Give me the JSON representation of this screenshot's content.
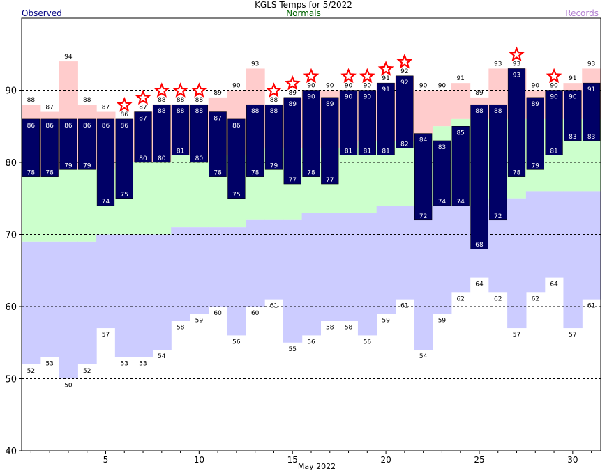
{
  "title": "KGLS Temps for 5/2022",
  "legend": {
    "observed": "Observed",
    "normals": "Normals",
    "records": "Records"
  },
  "colors": {
    "observed": "#000066",
    "normals": "#ccffcc",
    "records_high": "#ffcccc",
    "records_low": "#ccccff",
    "star": "#ff0000",
    "grid": "#000000"
  },
  "chart_data": {
    "type": "bar",
    "title": "KGLS Temps for 5/2022",
    "xlabel": "May 2022",
    "ylabel": "",
    "ylim": [
      40,
      100
    ],
    "yticks": [
      40,
      50,
      60,
      70,
      80,
      90
    ],
    "xticks": [
      5,
      10,
      15,
      20,
      25,
      30
    ],
    "grid_dashed_at": [
      50,
      60,
      70,
      80,
      90
    ],
    "days": [
      1,
      2,
      3,
      4,
      5,
      6,
      7,
      8,
      9,
      10,
      11,
      12,
      13,
      14,
      15,
      16,
      17,
      18,
      19,
      20,
      21,
      22,
      23,
      24,
      25,
      26,
      27,
      28,
      29,
      30,
      31
    ],
    "observed_high": [
      86,
      86,
      86,
      86,
      86,
      86,
      87,
      88,
      88,
      88,
      87,
      86,
      88,
      88,
      89,
      90,
      89,
      90,
      90,
      91,
      92,
      84,
      83,
      85,
      88,
      88,
      93,
      89,
      90,
      90,
      91
    ],
    "observed_low": [
      78,
      78,
      79,
      79,
      74,
      75,
      80,
      80,
      81,
      80,
      78,
      75,
      78,
      79,
      77,
      78,
      77,
      81,
      81,
      81,
      82,
      72,
      74,
      74,
      68,
      72,
      78,
      79,
      81,
      83,
      83
    ],
    "normal_high": [
      78,
      78,
      79,
      79,
      79,
      80,
      80,
      80,
      81,
      80,
      81,
      81,
      81,
      82,
      82,
      82,
      82,
      82,
      83,
      83,
      83,
      84,
      85,
      86,
      86,
      86,
      86,
      86,
      86,
      86,
      86
    ],
    "normal_low": [
      69,
      69,
      69,
      69,
      70,
      70,
      70,
      70,
      71,
      71,
      71,
      71,
      72,
      72,
      72,
      73,
      73,
      73,
      73,
      74,
      74,
      74,
      74,
      74,
      74,
      75,
      75,
      76,
      76,
      76,
      76
    ],
    "record_high": [
      88,
      87,
      94,
      88,
      87,
      86,
      87,
      88,
      88,
      88,
      89,
      90,
      93,
      88,
      89,
      90,
      90,
      90,
      90,
      91,
      92,
      90,
      90,
      91,
      89,
      93,
      93,
      90,
      90,
      91,
      93
    ],
    "record_low": [
      52,
      53,
      50,
      52,
      57,
      53,
      53,
      54,
      58,
      59,
      60,
      56,
      60,
      61,
      55,
      56,
      58,
      58,
      56,
      59,
      61,
      54,
      59,
      62,
      64,
      62,
      57,
      62,
      64,
      57,
      61
    ],
    "record_set_days": [
      6,
      7,
      8,
      9,
      10,
      14,
      15,
      16,
      18,
      19,
      20,
      21,
      27,
      29
    ]
  }
}
